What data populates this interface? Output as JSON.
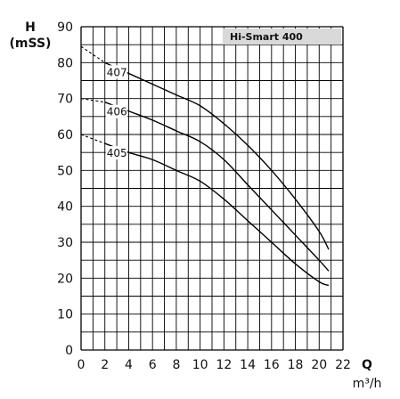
{
  "chart_data": {
    "type": "line",
    "title": "Hi-Smart 400",
    "xlabel": "Q",
    "xunit": "m³/h",
    "ylabel": "H",
    "yunit": "(mSS)",
    "xlim": [
      0,
      22
    ],
    "ylim": [
      0,
      90
    ],
    "xticks": [
      0,
      2,
      4,
      6,
      8,
      10,
      12,
      14,
      16,
      18,
      20,
      22
    ],
    "yticks": [
      0,
      10,
      20,
      30,
      40,
      50,
      60,
      70,
      80,
      90
    ],
    "grid": true,
    "series": [
      {
        "name": "407",
        "dashed_segment": [
          [
            0,
            84.5
          ],
          [
            2,
            80
          ]
        ],
        "points": [
          [
            2,
            80
          ],
          [
            4,
            77
          ],
          [
            6,
            74
          ],
          [
            8,
            71
          ],
          [
            10,
            68
          ],
          [
            12,
            63
          ],
          [
            14,
            57
          ],
          [
            16,
            50
          ],
          [
            18,
            42
          ],
          [
            20,
            33
          ],
          [
            20.8,
            28
          ]
        ]
      },
      {
        "name": "406",
        "dashed_segment": [
          [
            0,
            70
          ],
          [
            2,
            69
          ]
        ],
        "points": [
          [
            2,
            69
          ],
          [
            4,
            66.5
          ],
          [
            6,
            64
          ],
          [
            8,
            61
          ],
          [
            10,
            58
          ],
          [
            12,
            53
          ],
          [
            14,
            46
          ],
          [
            16,
            39
          ],
          [
            18,
            32
          ],
          [
            20,
            25
          ],
          [
            20.8,
            22
          ]
        ]
      },
      {
        "name": "405",
        "dashed_segment": [
          [
            0,
            60
          ],
          [
            2,
            57.5
          ]
        ],
        "points": [
          [
            2,
            57.5
          ],
          [
            4,
            55
          ],
          [
            6,
            53
          ],
          [
            8,
            50
          ],
          [
            10,
            47
          ],
          [
            12,
            42
          ],
          [
            14,
            36
          ],
          [
            16,
            30
          ],
          [
            18,
            24
          ],
          [
            20,
            19
          ],
          [
            20.8,
            18
          ]
        ]
      }
    ]
  }
}
